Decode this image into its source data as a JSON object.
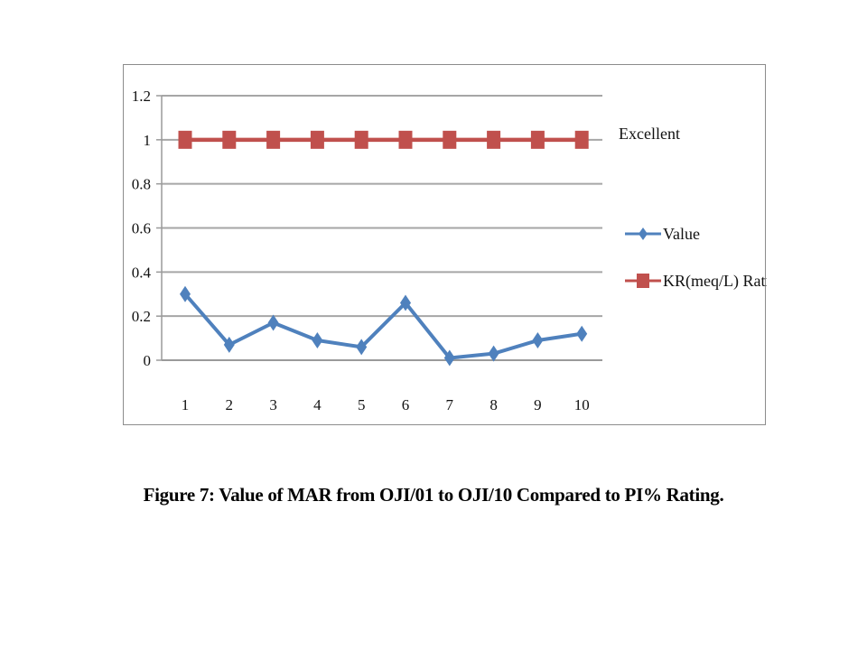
{
  "caption": "Figure 7:  Value of MAR from OJI/01 to OJI/10 Compared to PI% Rating.",
  "chart_data": {
    "type": "line",
    "categories": [
      "1",
      "2",
      "3",
      "4",
      "5",
      "6",
      "7",
      "8",
      "9",
      "10"
    ],
    "series": [
      {
        "name": "Value",
        "values": [
          0.3,
          0.07,
          0.17,
          0.09,
          0.06,
          0.26,
          0.01,
          0.03,
          0.09,
          0.12
        ],
        "color": "#4F81BD",
        "marker": "diamond"
      },
      {
        "name": "KR(meq/L) Rating",
        "values": [
          1,
          1,
          1,
          1,
          1,
          1,
          1,
          1,
          1,
          1
        ],
        "color": "#C0504D",
        "marker": "square"
      }
    ],
    "ylim": [
      0,
      1.2
    ],
    "yticks": [
      "0",
      "0.2",
      "0.4",
      "0.6",
      "0.8",
      "1",
      "1.2"
    ],
    "annotations": [
      {
        "text": "Excellent",
        "y": 1
      }
    ],
    "grid": true,
    "legend_position": "right"
  }
}
